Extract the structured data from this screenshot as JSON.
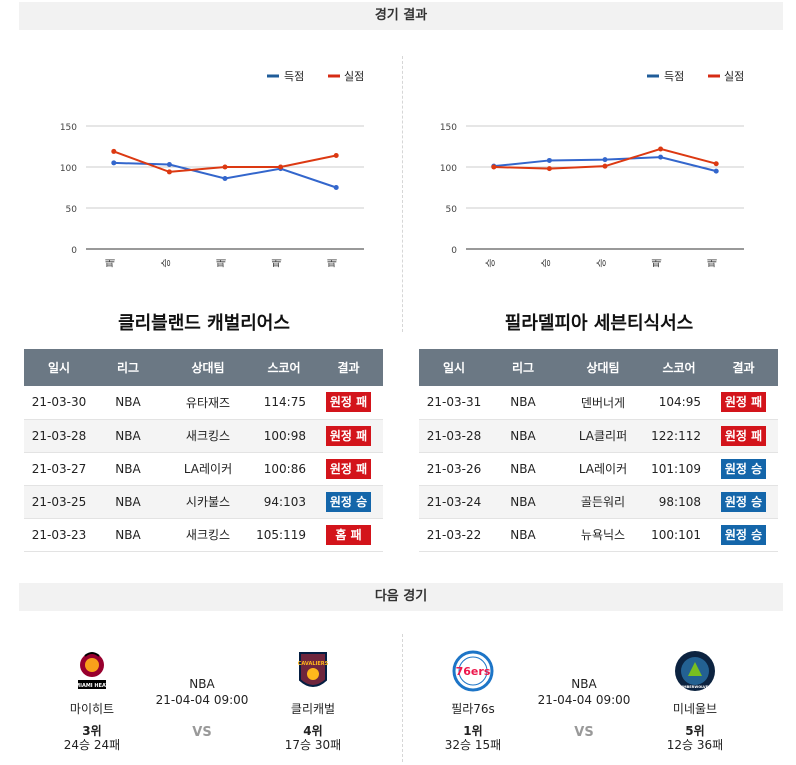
{
  "results_header": "경기 결과",
  "next_header": "다음 경기",
  "legend": {
    "scored": "득점",
    "conceded": "실점",
    "scored_color": "#1f5c99",
    "conceded_color": "#d62b14"
  },
  "colors": {
    "line_scored": "#3366cc",
    "line_conceded": "#dc3912",
    "header_bg": "#6b7884",
    "lose": "#d3141b",
    "win": "#1466aa"
  },
  "left": {
    "team_title": "클리블랜드 캐벌리어스",
    "chart_data": {
      "type": "line",
      "categories": [
        "패",
        "승",
        "패",
        "패",
        "패"
      ],
      "ylim": [
        0,
        150
      ],
      "yticks": [
        "0",
        "50",
        "100",
        "150"
      ],
      "series": [
        {
          "name": "득점",
          "values": [
            105,
            103,
            86,
            98,
            75
          ]
        },
        {
          "name": "실점",
          "values": [
            119,
            94,
            100,
            100,
            114
          ]
        }
      ]
    },
    "table": {
      "headers": [
        "일시",
        "리그",
        "상대팀",
        "스코어",
        "결과"
      ],
      "rows": [
        {
          "date": "21-03-30",
          "league": "NBA",
          "opponent": "유타재즈",
          "score": "114:75",
          "result": "원정 패",
          "win": false
        },
        {
          "date": "21-03-28",
          "league": "NBA",
          "opponent": "새크킹스",
          "score": "100:98",
          "result": "원정 패",
          "win": false
        },
        {
          "date": "21-03-27",
          "league": "NBA",
          "opponent": "LA레이커",
          "score": "100:86",
          "result": "원정 패",
          "win": false
        },
        {
          "date": "21-03-25",
          "league": "NBA",
          "opponent": "시카불스",
          "score": "94:103",
          "result": "원정 승",
          "win": true
        },
        {
          "date": "21-03-23",
          "league": "NBA",
          "opponent": "새크킹스",
          "score": "105:119",
          "result": "홈 패",
          "win": false
        }
      ]
    }
  },
  "right": {
    "team_title": "필라델피아 세븐티식서스",
    "chart_data": {
      "type": "line",
      "categories": [
        "승",
        "승",
        "승",
        "패",
        "패"
      ],
      "ylim": [
        0,
        150
      ],
      "yticks": [
        "0",
        "50",
        "100",
        "150"
      ],
      "series": [
        {
          "name": "득점",
          "values": [
            101,
            108,
            109,
            112,
            95
          ]
        },
        {
          "name": "실점",
          "values": [
            100,
            98,
            101,
            122,
            104
          ]
        }
      ]
    },
    "table": {
      "headers": [
        "일시",
        "리그",
        "상대팀",
        "스코어",
        "결과"
      ],
      "rows": [
        {
          "date": "21-03-31",
          "league": "NBA",
          "opponent": "덴버너게",
          "score": "104:95",
          "result": "원정 패",
          "win": false
        },
        {
          "date": "21-03-28",
          "league": "NBA",
          "opponent": "LA클리퍼",
          "score": "122:112",
          "result": "원정 패",
          "win": false
        },
        {
          "date": "21-03-26",
          "league": "NBA",
          "opponent": "LA레이커",
          "score": "101:109",
          "result": "원정 승",
          "win": true
        },
        {
          "date": "21-03-24",
          "league": "NBA",
          "opponent": "골든워리",
          "score": "98:108",
          "result": "원정 승",
          "win": true
        },
        {
          "date": "21-03-22",
          "league": "NBA",
          "opponent": "뉴욕닉스",
          "score": "100:101",
          "result": "원정 승",
          "win": true
        }
      ]
    }
  },
  "next_games": [
    {
      "league": "NBA",
      "time": "21-04-04 09:00",
      "vs": "VS",
      "home": {
        "name": "마이히트",
        "rank": "3위",
        "record": "24승 24패",
        "logo": "miami-heat-logo",
        "logo_text": "MIAMI HEAT"
      },
      "away": {
        "name": "클리캐벌",
        "rank": "4위",
        "record": "17승 30패",
        "logo": "cleveland-cavaliers-logo",
        "logo_text": "CAVALIERS"
      }
    },
    {
      "league": "NBA",
      "time": "21-04-04 09:00",
      "vs": "VS",
      "home": {
        "name": "필라76s",
        "rank": "1위",
        "record": "32승 15패",
        "logo": "philadelphia-76ers-logo",
        "logo_text": "76ers"
      },
      "away": {
        "name": "미네울브",
        "rank": "5위",
        "record": "12승 36패",
        "logo": "minnesota-timberwolves-logo",
        "logo_text": "TIMBERWOLVES"
      }
    }
  ]
}
